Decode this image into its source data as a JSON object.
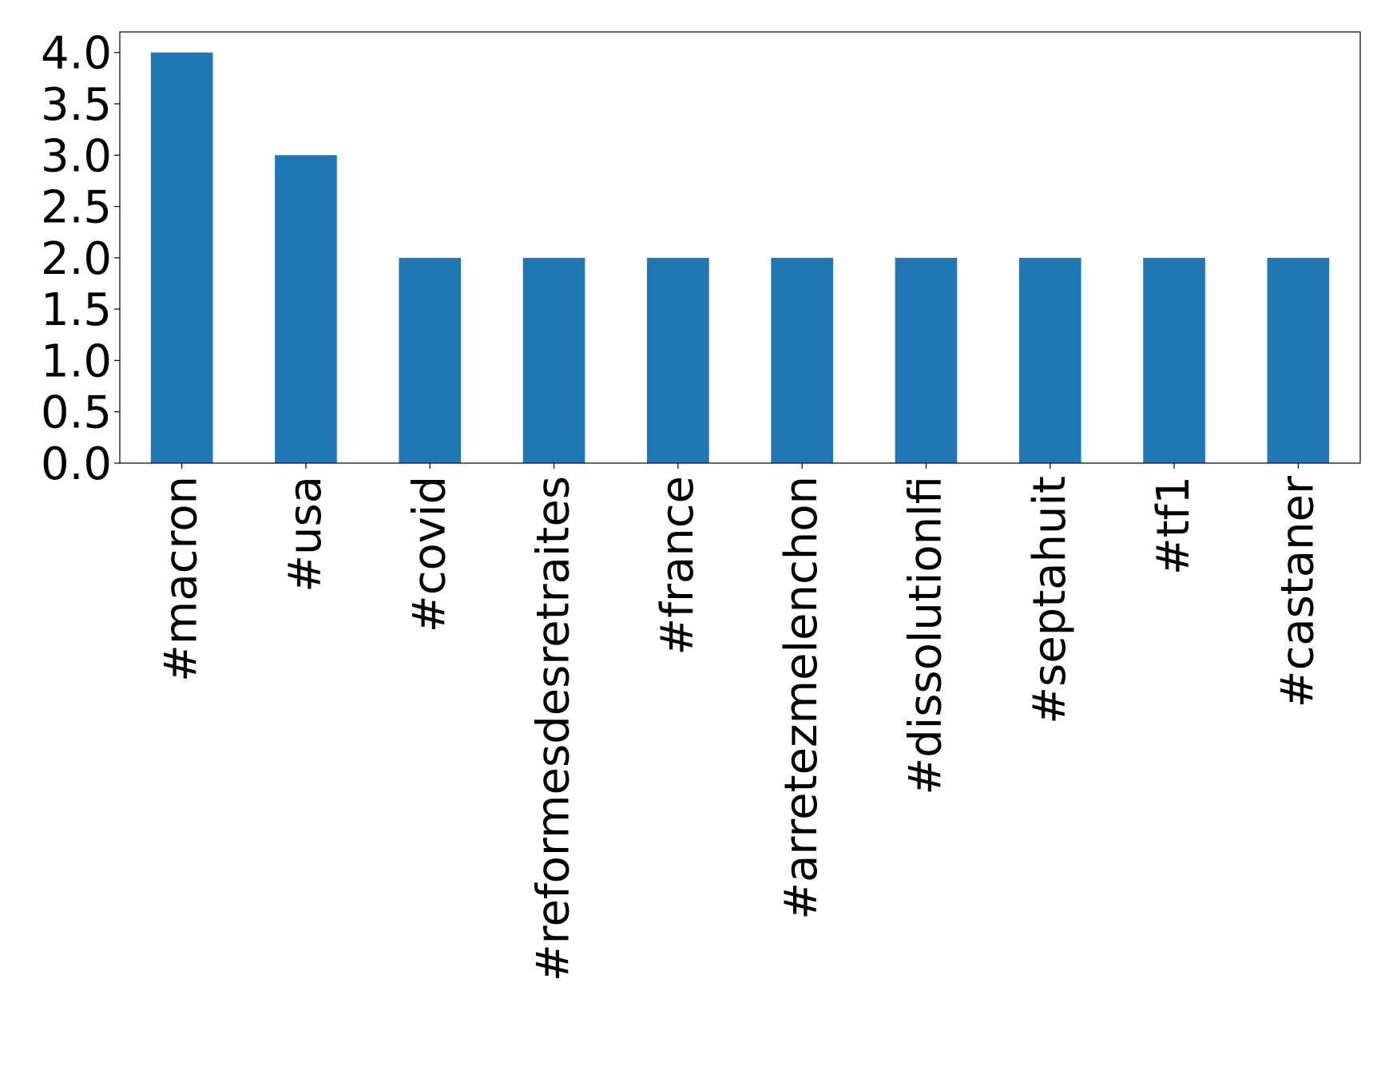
{
  "chart_data": {
    "type": "bar",
    "categories": [
      "#macron",
      "#usa",
      "#covid",
      "#reformesdesretraites",
      "#france",
      "#arretezmelenchon",
      "#dissolutionlfi",
      "#septahuit",
      "#tf1",
      "#castaner"
    ],
    "values": [
      4,
      3,
      2,
      2,
      2,
      2,
      2,
      2,
      2,
      2
    ],
    "title": "",
    "xlabel": "",
    "ylabel": "",
    "ylim": [
      0,
      4.2
    ],
    "yticks": [
      "0.0",
      "0.5",
      "1.0",
      "1.5",
      "2.0",
      "2.5",
      "3.0",
      "3.5",
      "4.0"
    ],
    "bar_color": "#1f77b4",
    "grid": false,
    "legend": "none"
  }
}
